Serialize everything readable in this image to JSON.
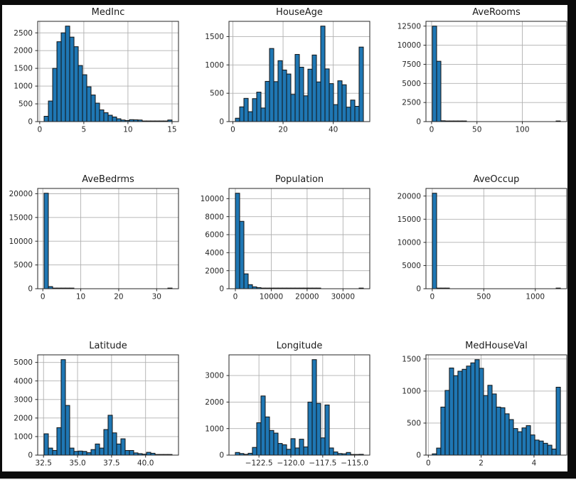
{
  "window": {
    "background": "#0b0b0b",
    "figure_background": "#ffffff"
  },
  "colors": {
    "bar_fill": "#1f77b4",
    "bar_edge": "#111111",
    "grid": "#b0b0b0",
    "spine": "#262626",
    "tick_text": "#262626"
  },
  "chart_data": [
    {
      "type": "bar",
      "title": "MedInc",
      "bin_start": 0.4999,
      "bin_width": 0.48334,
      "values": [
        150,
        580,
        1500,
        2250,
        2500,
        2690,
        2380,
        2110,
        1580,
        1320,
        980,
        750,
        520,
        330,
        250,
        180,
        130,
        80,
        45,
        30,
        55,
        50,
        45,
        15,
        10,
        8,
        6,
        5,
        4,
        45
      ],
      "xlim": [
        -0.23,
        15.73
      ],
      "ylim": [
        0,
        2824
      ],
      "xticks": [
        0,
        5,
        10,
        15
      ],
      "xtick_labels": [
        "0",
        "5",
        "10",
        "15"
      ],
      "yticks": [
        0,
        500,
        1000,
        1500,
        2000,
        2500
      ],
      "ytick_labels": [
        "0",
        "500",
        "1000",
        "1500",
        "2000",
        "2500"
      ],
      "grid": true,
      "legend": null
    },
    {
      "type": "bar",
      "title": "HouseAge",
      "bin_start": 1.0,
      "bin_width": 1.7,
      "values": [
        60,
        260,
        410,
        175,
        405,
        520,
        240,
        710,
        1290,
        705,
        1075,
        910,
        840,
        480,
        1185,
        960,
        455,
        925,
        1175,
        700,
        1685,
        930,
        670,
        300,
        720,
        650,
        255,
        380,
        270,
        1315
      ],
      "xlim": [
        -1.55,
        54.55
      ],
      "ylim": [
        0,
        1769
      ],
      "xticks": [
        0,
        20,
        40
      ],
      "xtick_labels": [
        "0",
        "20",
        "40"
      ],
      "yticks": [
        0,
        500,
        1000,
        1500
      ],
      "ytick_labels": [
        "0",
        "500",
        "1000",
        "1500"
      ],
      "grid": true,
      "legend": null
    },
    {
      "type": "bar",
      "title": "AveRooms",
      "bin_start": 0.8462,
      "bin_width": 4.7021,
      "values": [
        12500,
        7900,
        110,
        15,
        5,
        2,
        1,
        1,
        0,
        0,
        0,
        0,
        0,
        0,
        0,
        0,
        0,
        0,
        0,
        0,
        0,
        0,
        0,
        0,
        0,
        0,
        0,
        0,
        0,
        1
      ],
      "xlim": [
        -6.21,
        148.96
      ],
      "ylim": [
        0,
        13125
      ],
      "xticks": [
        0,
        50,
        100
      ],
      "xtick_labels": [
        "0",
        "50",
        "100"
      ],
      "yticks": [
        0,
        2500,
        5000,
        7500,
        10000,
        12500
      ],
      "ytick_labels": [
        "0",
        "2500",
        "5000",
        "7500",
        "10000",
        "12500"
      ],
      "grid": true,
      "legend": null
    },
    {
      "type": "bar",
      "title": "AveBedrms",
      "bin_start": 0.3333,
      "bin_width": 1.1245,
      "values": [
        20100,
        450,
        130,
        20,
        6,
        2,
        1,
        0,
        0,
        0,
        0,
        0,
        0,
        0,
        0,
        0,
        0,
        0,
        0,
        0,
        0,
        0,
        0,
        0,
        0,
        0,
        0,
        0,
        0,
        1
      ],
      "xlim": [
        -1.35,
        35.75
      ],
      "ylim": [
        0,
        21105
      ],
      "xticks": [
        0,
        10,
        20,
        30
      ],
      "xtick_labels": [
        "0",
        "10",
        "20",
        "30"
      ],
      "yticks": [
        0,
        5000,
        10000,
        15000,
        20000
      ],
      "ytick_labels": [
        "0",
        "5000",
        "10000",
        "15000",
        "20000"
      ],
      "grid": true,
      "legend": null
    },
    {
      "type": "bar",
      "title": "Population",
      "bin_start": 3,
      "bin_width": 1189.3,
      "values": [
        10600,
        7480,
        1650,
        450,
        210,
        120,
        70,
        45,
        25,
        15,
        10,
        8,
        5,
        4,
        3,
        2,
        2,
        1,
        1,
        1,
        0,
        0,
        0,
        0,
        0,
        0,
        0,
        0,
        0,
        1
      ],
      "xlim": [
        -1781,
        37466
      ],
      "ylim": [
        0,
        11130
      ],
      "xticks": [
        0,
        10000,
        20000,
        30000
      ],
      "xtick_labels": [
        "0",
        "10000",
        "20000",
        "30000"
      ],
      "yticks": [
        0,
        2000,
        4000,
        6000,
        8000,
        10000
      ],
      "ytick_labels": [
        "0",
        "2000",
        "4000",
        "6000",
        "8000",
        "10000"
      ],
      "grid": true,
      "legend": null
    },
    {
      "type": "bar",
      "title": "AveOccup",
      "bin_start": 0.6923,
      "bin_width": 41.4204,
      "values": [
        20610,
        20,
        3,
        1,
        0,
        0,
        0,
        0,
        0,
        0,
        0,
        0,
        0,
        0,
        0,
        0,
        0,
        0,
        0,
        0,
        0,
        0,
        0,
        0,
        0,
        0,
        0,
        0,
        0,
        1
      ],
      "xlim": [
        -61.4,
        1305.4
      ],
      "ylim": [
        0,
        21640
      ],
      "xticks": [
        0,
        500,
        1000
      ],
      "xtick_labels": [
        "0",
        "500",
        "1000"
      ],
      "yticks": [
        0,
        5000,
        10000,
        15000,
        20000
      ],
      "ytick_labels": [
        "0",
        "5000",
        "10000",
        "15000",
        "20000"
      ],
      "grid": true,
      "legend": null
    },
    {
      "type": "bar",
      "title": "Latitude",
      "bin_start": 32.54,
      "bin_width": 0.31367,
      "values": [
        1150,
        380,
        250,
        1480,
        5150,
        2680,
        380,
        200,
        220,
        200,
        130,
        300,
        600,
        380,
        1380,
        2150,
        1200,
        600,
        880,
        250,
        250,
        120,
        80,
        50,
        150,
        100,
        30,
        20,
        15,
        30
      ],
      "xlim": [
        32.07,
        42.42
      ],
      "ylim": [
        0,
        5408
      ],
      "xticks": [
        32.5,
        35.0,
        37.5,
        40.0
      ],
      "xtick_labels": [
        "32.5",
        "35.0",
        "37.5",
        "40.0"
      ],
      "yticks": [
        0,
        1000,
        2000,
        3000,
        4000,
        5000
      ],
      "ytick_labels": [
        "0",
        "1000",
        "2000",
        "3000",
        "4000",
        "5000"
      ],
      "grid": true,
      "legend": null
    },
    {
      "type": "bar",
      "title": "Longitude",
      "bin_start": -124.35,
      "bin_width": 0.33467,
      "values": [
        100,
        60,
        30,
        70,
        290,
        1220,
        2230,
        1440,
        930,
        830,
        440,
        390,
        220,
        620,
        270,
        600,
        310,
        2000,
        3600,
        1950,
        650,
        1890,
        270,
        120,
        60,
        50,
        100,
        10,
        5,
        30
      ],
      "xlim": [
        -124.85,
        -113.81
      ],
      "ylim": [
        0,
        3780
      ],
      "xticks": [
        -122.5,
        -120.0,
        -117.5,
        -115.0
      ],
      "xtick_labels": [
        "−122.5",
        "−120.0",
        "−117.5",
        "−115.0"
      ],
      "yticks": [
        0,
        1000,
        2000,
        3000
      ],
      "ytick_labels": [
        "0",
        "1000",
        "2000",
        "3000"
      ],
      "grid": true,
      "legend": null
    },
    {
      "type": "bar",
      "title": "MedHouseVal",
      "bin_start": 0.14999,
      "bin_width": 0.16167,
      "values": [
        20,
        110,
        750,
        1010,
        1360,
        1240,
        1310,
        1340,
        1390,
        1440,
        1490,
        1355,
        930,
        1090,
        955,
        750,
        740,
        645,
        555,
        415,
        365,
        425,
        460,
        315,
        235,
        220,
        185,
        155,
        95,
        1060
      ],
      "xlim": [
        -0.09,
        5.24
      ],
      "ylim": [
        0,
        1565
      ],
      "xticks": [
        0,
        2,
        4
      ],
      "xtick_labels": [
        "0",
        "2",
        "4"
      ],
      "yticks": [
        0,
        500,
        1000,
        1500
      ],
      "ytick_labels": [
        "0",
        "500",
        "1000",
        "1500"
      ],
      "grid": true,
      "legend": null
    }
  ]
}
